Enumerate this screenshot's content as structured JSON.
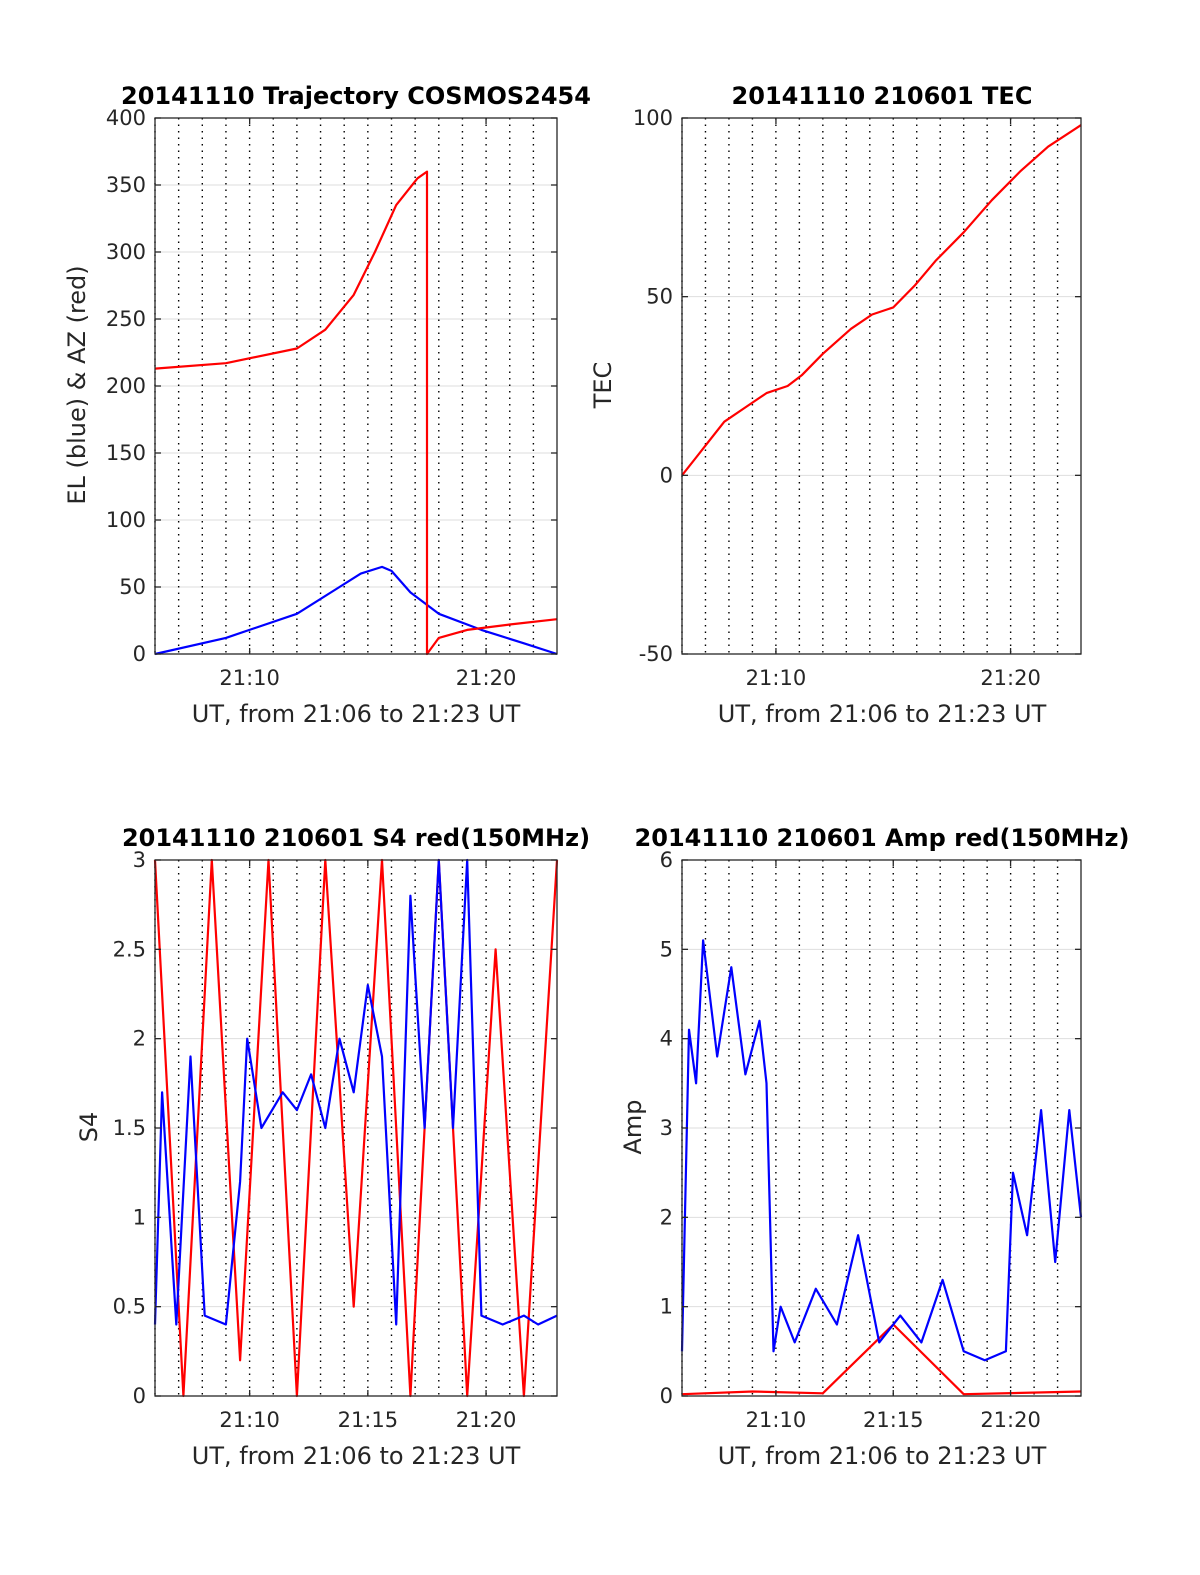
{
  "colors": {
    "red": "#ff0000",
    "blue": "#0000ff",
    "axis": "#262626",
    "grid": "#dedede",
    "dotted": "#000000"
  },
  "chart_data": [
    {
      "id": "trajectory",
      "type": "line",
      "title": "20141110 Trajectory COSMOS2454",
      "xlabel": "UT, from 21:06 to 21:23 UT",
      "ylabel": "EL (blue) & AZ (red)",
      "xlim": [
        21.1,
        21.3833
      ],
      "ylim": [
        0,
        400
      ],
      "yticks": [
        0,
        50,
        100,
        150,
        200,
        250,
        300,
        350,
        400
      ],
      "ytick_labels": [
        "0",
        "50",
        "100",
        "150",
        "200",
        "250",
        "300",
        "350",
        "400"
      ],
      "xticks": [
        21.1667,
        21.3333
      ],
      "xtick_labels": [
        "21:10",
        "21:20"
      ],
      "series": [
        {
          "color": "#0000ff",
          "x": [
            21.1,
            21.15,
            21.2,
            21.23,
            21.245,
            21.26,
            21.2667,
            21.28,
            21.3,
            21.33,
            21.36,
            21.3833
          ],
          "y": [
            0,
            12,
            30,
            50,
            60,
            65,
            62,
            46,
            30,
            18,
            8,
            0
          ]
        },
        {
          "color": "#ff0000",
          "x": [
            21.1,
            21.15,
            21.2,
            21.22,
            21.24,
            21.255,
            21.27,
            21.285,
            21.2917,
            21.2917,
            21.3,
            21.32,
            21.35,
            21.3833
          ],
          "y": [
            213,
            217,
            228,
            242,
            268,
            300,
            335,
            355,
            360,
            0,
            12,
            18,
            22,
            26
          ]
        }
      ]
    },
    {
      "id": "tec",
      "type": "line",
      "title": "20141110 210601 TEC",
      "xlabel": "UT, from 21:06 to 21:23 UT",
      "ylabel": "TEC",
      "xlim": [
        21.1,
        21.3833
      ],
      "ylim": [
        -50,
        100
      ],
      "yticks": [
        -50,
        0,
        50,
        100
      ],
      "ytick_labels": [
        "-50",
        "0",
        "50",
        "100"
      ],
      "xticks": [
        21.1667,
        21.3333
      ],
      "xtick_labels": [
        "21:10",
        "21:20"
      ],
      "series": [
        {
          "color": "#ff0000",
          "x": [
            21.1,
            21.11,
            21.12,
            21.13,
            21.145,
            21.16,
            21.175,
            21.185,
            21.2,
            21.22,
            21.235,
            21.25,
            21.265,
            21.28,
            21.3,
            21.32,
            21.34,
            21.36,
            21.3833
          ],
          "y": [
            0,
            5,
            10,
            15,
            19,
            23,
            25,
            28,
            34,
            41,
            45,
            47,
            53,
            60,
            68,
            77,
            85,
            92,
            98
          ]
        }
      ]
    },
    {
      "id": "s4",
      "type": "line",
      "title": "20141110 210601 S4 red(150MHz)",
      "xlabel": "UT, from 21:06 to 21:23 UT",
      "ylabel": "S4",
      "xlim": [
        21.1,
        21.3833
      ],
      "ylim": [
        0,
        3
      ],
      "yticks": [
        0,
        0.5,
        1,
        1.5,
        2,
        2.5,
        3
      ],
      "ytick_labels": [
        "0",
        "0.5",
        "1",
        "1.5",
        "2",
        "2.5",
        "3"
      ],
      "xticks": [
        21.1667,
        21.25,
        21.3333
      ],
      "xtick_labels": [
        "21:10",
        "21:15",
        "21:20"
      ],
      "series": [
        {
          "color": "#ff0000",
          "x": [
            21.1,
            21.12,
            21.14,
            21.16,
            21.18,
            21.2,
            21.22,
            21.24,
            21.26,
            21.28,
            21.3,
            21.32,
            21.34,
            21.36,
            21.3833
          ],
          "y": [
            3,
            0,
            3,
            0.2,
            3,
            0,
            3,
            0.5,
            3,
            0,
            3,
            0,
            2.5,
            0,
            3
          ]
        },
        {
          "color": "#0000ff",
          "x": [
            21.1,
            21.105,
            21.115,
            21.125,
            21.135,
            21.15,
            21.16,
            21.165,
            21.175,
            21.19,
            21.2,
            21.21,
            21.22,
            21.23,
            21.24,
            21.25,
            21.26,
            21.27,
            21.28,
            21.29,
            21.3,
            21.31,
            21.32,
            21.33,
            21.345,
            21.36,
            21.37,
            21.3833
          ],
          "y": [
            0.4,
            1.7,
            0.4,
            1.9,
            0.45,
            0.4,
            1.2,
            2.0,
            1.5,
            1.7,
            1.6,
            1.8,
            1.5,
            2.0,
            1.7,
            2.3,
            1.9,
            0.4,
            2.8,
            1.5,
            3.0,
            1.5,
            3.0,
            0.45,
            0.4,
            0.45,
            0.4,
            0.45
          ]
        }
      ]
    },
    {
      "id": "amp",
      "type": "line",
      "title": "20141110 210601 Amp red(150MHz)",
      "xlabel": "UT, from 21:06 to 21:23 UT",
      "ylabel": "Amp",
      "xlim": [
        21.1,
        21.3833
      ],
      "ylim": [
        0,
        6
      ],
      "yticks": [
        0,
        1,
        2,
        3,
        4,
        5,
        6
      ],
      "ytick_labels": [
        "0",
        "1",
        "2",
        "3",
        "4",
        "5",
        "6"
      ],
      "xticks": [
        21.1667,
        21.25,
        21.3333
      ],
      "xtick_labels": [
        "21:10",
        "21:15",
        "21:20"
      ],
      "series": [
        {
          "color": "#ff0000",
          "x": [
            21.1,
            21.15,
            21.2,
            21.25,
            21.3,
            21.3833
          ],
          "y": [
            0.02,
            0.05,
            0.03,
            0.8,
            0.02,
            0.05
          ]
        },
        {
          "color": "#0000ff",
          "x": [
            21.1,
            21.105,
            21.11,
            21.115,
            21.125,
            21.135,
            21.145,
            21.155,
            21.16,
            21.165,
            21.17,
            21.18,
            21.195,
            21.21,
            21.225,
            21.24,
            21.255,
            21.27,
            21.285,
            21.3,
            21.315,
            21.33,
            21.335,
            21.345,
            21.355,
            21.365,
            21.375,
            21.3833
          ],
          "y": [
            0.5,
            4.1,
            3.5,
            5.1,
            3.8,
            4.8,
            3.6,
            4.2,
            3.5,
            0.5,
            1.0,
            0.6,
            1.2,
            0.8,
            1.8,
            0.6,
            0.9,
            0.6,
            1.3,
            0.5,
            0.4,
            0.5,
            2.5,
            1.8,
            3.2,
            1.5,
            3.2,
            2.0
          ]
        }
      ]
    }
  ]
}
